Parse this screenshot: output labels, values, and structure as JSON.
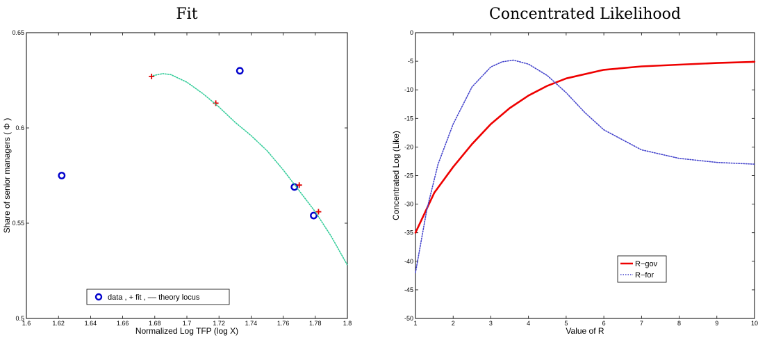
{
  "chart_data": [
    {
      "type": "scatter",
      "title": "Fit",
      "xlabel": "Normalized  Log  TFP (log X)",
      "ylabel": "Share of senior managers ( Φ )",
      "xlim": [
        1.6,
        1.8
      ],
      "ylim": [
        0.5,
        0.65
      ],
      "grid": false,
      "legend_placement": "bottom-center",
      "legend_text": "data ,  + fit , –– theory locus",
      "xticks": [
        "1.6",
        "1.62",
        "1.64",
        "1.66",
        "1.68",
        "1.7",
        "1.72",
        "1.74",
        "1.76",
        "1.78",
        "1.8"
      ],
      "yticks": [
        "0.5",
        "0.55",
        "0.6",
        "0.65"
      ],
      "series": [
        {
          "marker": "circle",
          "color": "#0000cc",
          "x": [
            1.622,
            1.733,
            1.767,
            1.779
          ],
          "y": [
            0.575,
            0.63,
            0.569,
            0.554
          ]
        },
        {
          "marker": "plus",
          "color": "#dd0000",
          "x": [
            1.678,
            1.718,
            1.77,
            1.782
          ],
          "y": [
            0.627,
            0.613,
            0.57,
            0.556
          ]
        },
        {
          "marker": "dotted-line",
          "color": "#33cc99",
          "x": [
            1.679,
            1.685,
            1.69,
            1.7,
            1.71,
            1.72,
            1.73,
            1.74,
            1.75,
            1.76,
            1.77,
            1.78,
            1.79,
            1.8
          ],
          "y": [
            0.6275,
            0.6285,
            0.628,
            0.624,
            0.618,
            0.611,
            0.603,
            0.596,
            0.588,
            0.578,
            0.567,
            0.556,
            0.543,
            0.528
          ]
        }
      ]
    },
    {
      "type": "line",
      "title": "Concentrated Likelihood",
      "xlabel": "Value of R",
      "ylabel": "Concentrated Log (Like)",
      "xlim": [
        1,
        10
      ],
      "ylim": [
        -50,
        0
      ],
      "grid": false,
      "legend_placement": "center",
      "xticks": [
        "1",
        "2",
        "3",
        "4",
        "5",
        "6",
        "7",
        "8",
        "9",
        "10"
      ],
      "yticks": [
        "0",
        "-5",
        "-10",
        "-15",
        "-20",
        "-25",
        "-30",
        "-35",
        "-40",
        "-45",
        "-50"
      ],
      "series": [
        {
          "name": "R−gov",
          "style": "solid",
          "color": "#ee0000",
          "x": [
            1,
            1.5,
            2,
            2.5,
            3,
            3.5,
            4,
            4.5,
            5,
            6,
            7,
            8,
            9,
            10
          ],
          "y": [
            -35,
            -28,
            -23.5,
            -19.5,
            -16,
            -13.2,
            -11,
            -9.3,
            -8,
            -6.5,
            -5.9,
            -5.6,
            -5.3,
            -5.1
          ]
        },
        {
          "name": "R−for",
          "style": "dotted",
          "color": "#4444cc",
          "x": [
            1,
            1.3,
            1.6,
            2,
            2.5,
            3,
            3.3,
            3.6,
            4,
            4.5,
            5,
            5.5,
            6,
            7,
            8,
            9,
            10
          ],
          "y": [
            -42,
            -31,
            -23,
            -16,
            -9.5,
            -6,
            -5.1,
            -4.8,
            -5.5,
            -7.5,
            -10.5,
            -14,
            -17,
            -20.5,
            -22,
            -22.7,
            -23
          ]
        }
      ]
    }
  ]
}
